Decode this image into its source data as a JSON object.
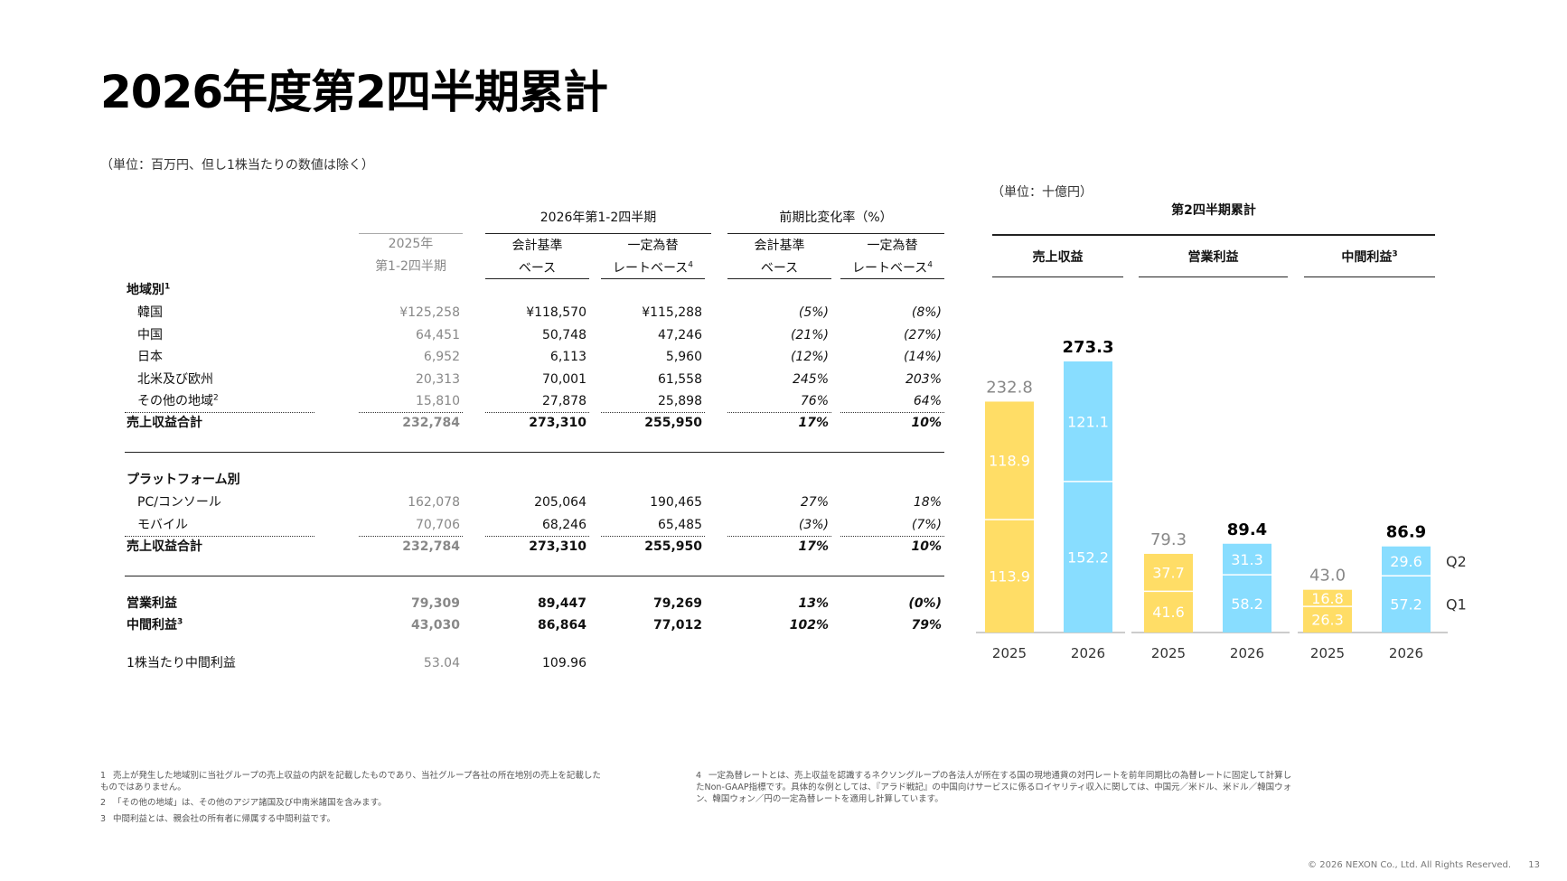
{
  "title": "2026年度第2四半期累計",
  "unit_left": "（単位：百万円、但し1株当たりの数値は除く）",
  "unit_right": "（単位：十億円）",
  "table": {
    "header_2026": "2026年第1-2四半期",
    "header_change": "前期比変化率（%）",
    "col_2025_line1": "2025年",
    "col_2025_line2": "第1-2四半期",
    "col_acc_line1": "会計基準",
    "col_acc_line2": "ベース",
    "col_cc_line1": "一定為替",
    "col_cc_line2": "レートベース",
    "col_cc_sup": "4",
    "section_region": "地域別",
    "section_region_sup": "1",
    "region_rows": [
      {
        "label": "韓国",
        "sup": "",
        "v2025": "¥125,258",
        "acc": "¥118,570",
        "cc": "¥115,288",
        "chg_acc": "(5%)",
        "chg_cc": "(8%)"
      },
      {
        "label": "中国",
        "sup": "",
        "v2025": "64,451",
        "acc": "50,748",
        "cc": "47,246",
        "chg_acc": "(21%)",
        "chg_cc": "(27%)"
      },
      {
        "label": "日本",
        "sup": "",
        "v2025": "6,952",
        "acc": "6,113",
        "cc": "5,960",
        "chg_acc": "(12%)",
        "chg_cc": "(14%)"
      },
      {
        "label": "北米及び欧州",
        "sup": "",
        "v2025": "20,313",
        "acc": "70,001",
        "cc": "61,558",
        "chg_acc": "245%",
        "chg_cc": "203%"
      },
      {
        "label": "その他の地域",
        "sup": "2",
        "v2025": "15,810",
        "acc": "27,878",
        "cc": "25,898",
        "chg_acc": "76%",
        "chg_cc": "64%"
      }
    ],
    "region_total": {
      "label": "売上収益合計",
      "v2025": "232,784",
      "acc": "273,310",
      "cc": "255,950",
      "chg_acc": "17%",
      "chg_cc": "10%"
    },
    "section_platform": "プラットフォーム別",
    "platform_rows": [
      {
        "label": "PC/コンソール",
        "v2025": "162,078",
        "acc": "205,064",
        "cc": "190,465",
        "chg_acc": "27%",
        "chg_cc": "18%"
      },
      {
        "label": "モバイル",
        "v2025": "70,706",
        "acc": "68,246",
        "cc": "65,485",
        "chg_acc": "(3%)",
        "chg_cc": "(7%)"
      }
    ],
    "platform_total": {
      "label": "売上収益合計",
      "v2025": "232,784",
      "acc": "273,310",
      "cc": "255,950",
      "chg_acc": "17%",
      "chg_cc": "10%"
    },
    "op_income": {
      "label": "営業利益",
      "v2025": "79,309",
      "acc": "89,447",
      "cc": "79,269",
      "chg_acc": "13%",
      "chg_cc": "(0%)"
    },
    "net_income": {
      "label": "中間利益",
      "sup": "3",
      "v2025": "43,030",
      "acc": "86,864",
      "cc": "77,012",
      "chg_acc": "102%",
      "chg_cc": "79%"
    },
    "eps": {
      "label": "1株当たり中間利益",
      "v2025": "53.04",
      "acc": "109.96"
    }
  },
  "chart_data": {
    "type": "bar",
    "stacked": true,
    "title": "第2四半期累計",
    "groups": [
      {
        "label": "売上収益",
        "sup": "",
        "bars": [
          {
            "x": "2025",
            "q1": 113.9,
            "q2": 118.9,
            "total": 232.8
          },
          {
            "x": "2026",
            "q1": 152.2,
            "q2": 121.1,
            "total": 273.3
          }
        ]
      },
      {
        "label": "営業利益",
        "sup": "",
        "bars": [
          {
            "x": "2025",
            "q1": 41.6,
            "q2": 37.7,
            "total": 79.3
          },
          {
            "x": "2026",
            "q1": 58.2,
            "q2": 31.3,
            "total": 89.4
          }
        ]
      },
      {
        "label": "中間利益",
        "sup": "3",
        "bars": [
          {
            "x": "2025",
            "q1": 26.3,
            "q2": 16.8,
            "total": 43.0
          },
          {
            "x": "2026",
            "q1": 57.2,
            "q2": 29.6,
            "total": 86.9
          }
        ]
      }
    ],
    "legend": {
      "q2": "Q2",
      "q1": "Q1"
    },
    "colors": {
      "y2025": "#FFDD66",
      "y2026": "#88DDFF",
      "total_2025": "#888888",
      "total_2026": "#000000"
    }
  },
  "footnotes": {
    "n1_num": "1",
    "n1": "売上が発生した地域別に当社グループの売上収益の内訳を記載したものであり、当社グループ各社の所在地別の売上を記載したものではありません。",
    "n2_num": "2",
    "n2": "「その他の地域」は、その他のアジア諸国及び中南米諸国を含みます。",
    "n3_num": "3",
    "n3": "中間利益とは、親会社の所有者に帰属する中間利益です。",
    "n4_num": "4",
    "n4": "一定為替レートとは、売上収益を認識するネクソングループの各法人が所在する国の現地通貨の対円レートを前年同期比の為替レートに固定して計算したNon-GAAP指標です。具体的な例としては、『アラド戦記』の中国向けサービスに係るロイヤリティ収入に関しては、中国元／米ドル、米ドル／韓国ウォン、韓国ウォン／円の一定為替レートを適用し計算しています。"
  },
  "copyright": "© 2026 NEXON Co., Ltd. All Rights Reserved.",
  "page_number": "13"
}
